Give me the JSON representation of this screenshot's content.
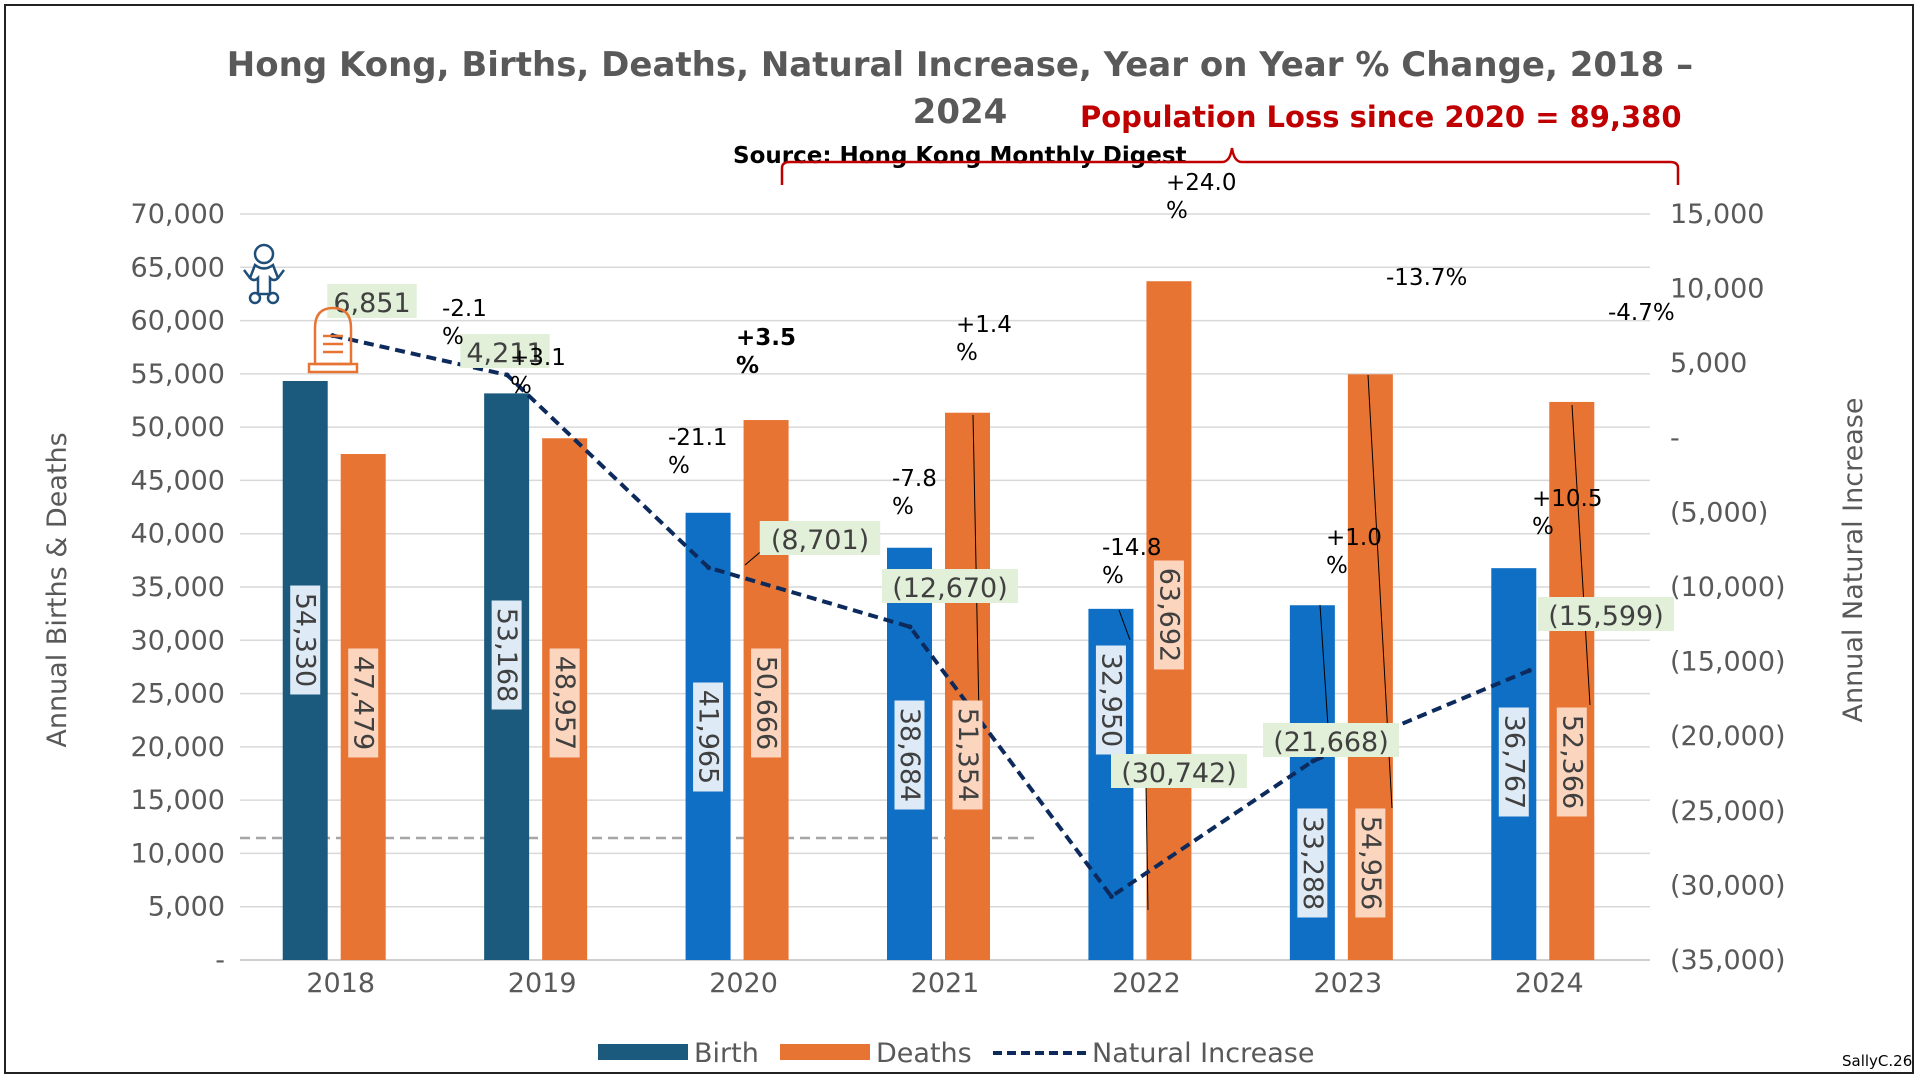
{
  "chart_data": {
    "type": "bar",
    "title": "Hong Kong, Births, Deaths, Natural Increase, Year on Year % Change, 2018 – 2024",
    "source": "Source: Hong Kong Monthly Digest",
    "annotation": "Population Loss since 2020 = 89,380",
    "credit": "SallyC.26",
    "categories": [
      "2018",
      "2019",
      "2020",
      "2021",
      "2022",
      "2023",
      "2024"
    ],
    "ylabel_left": "Annual Births & Deaths",
    "ylabel_right": "Annual Natural Increase",
    "ylim_left": [
      0,
      70000
    ],
    "ylim_right": [
      -35000,
      15000
    ],
    "left_ticks": [
      "-",
      "5,000",
      "10,000",
      "15,000",
      "20,000",
      "25,000",
      "30,000",
      "35,000",
      "40,000",
      "45,000",
      "50,000",
      "55,000",
      "60,000",
      "65,000",
      "70,000"
    ],
    "right_ticks": [
      "(35,000)",
      "(30,000)",
      "(25,000)",
      "(20,000)",
      "(15,000)",
      "(10,000)",
      "(5,000)",
      "-",
      "5,000",
      "10,000",
      "15,000"
    ],
    "series": [
      {
        "name": "Birth",
        "type": "bar",
        "values": [
          54330,
          53168,
          41965,
          38684,
          32950,
          33288,
          36767
        ],
        "labels": [
          "54,330",
          "53,168",
          "41,965",
          "38,684",
          "32,950",
          "33,288",
          "36,767"
        ],
        "colors": [
          "#1b5a7d",
          "#1b5a7d",
          "#0e6fc4",
          "#0e6fc4",
          "#0e6fc4",
          "#0e6fc4",
          "#0e6fc4"
        ],
        "pct_change": [
          "",
          "-2.1\n%",
          "-21.1\n%",
          "-7.8\n%",
          "-14.8\n%",
          "+1.0\n%",
          "+10.5\n%"
        ]
      },
      {
        "name": "Deaths",
        "type": "bar",
        "values": [
          47479,
          48957,
          50666,
          51354,
          63692,
          54956,
          52366
        ],
        "labels": [
          "47,479",
          "48,957",
          "50,666",
          "51,354",
          "63,692",
          "54,956",
          "52,366"
        ],
        "color": "#e87433",
        "pct_change": [
          "",
          "+3.1\n%",
          "+3.5\n%",
          "+1.4\n%",
          "+24.0\n%",
          "-13.7%",
          "-4.7%"
        ]
      },
      {
        "name": "Natural Increase",
        "type": "line",
        "axis": "right",
        "values": [
          6851,
          4211,
          -8701,
          -12670,
          -30742,
          -21668,
          -15599
        ],
        "labels": [
          "6,851",
          "4,211",
          "(8,701)",
          "(12,670)",
          "(30,742)",
          "(21,668)",
          "(15,599)"
        ],
        "color": "#0d2a5c",
        "style": "dashed"
      }
    ],
    "grid": true,
    "legend_position": "bottom"
  },
  "icons": [
    "baby-icon",
    "tombstone-icon"
  ]
}
